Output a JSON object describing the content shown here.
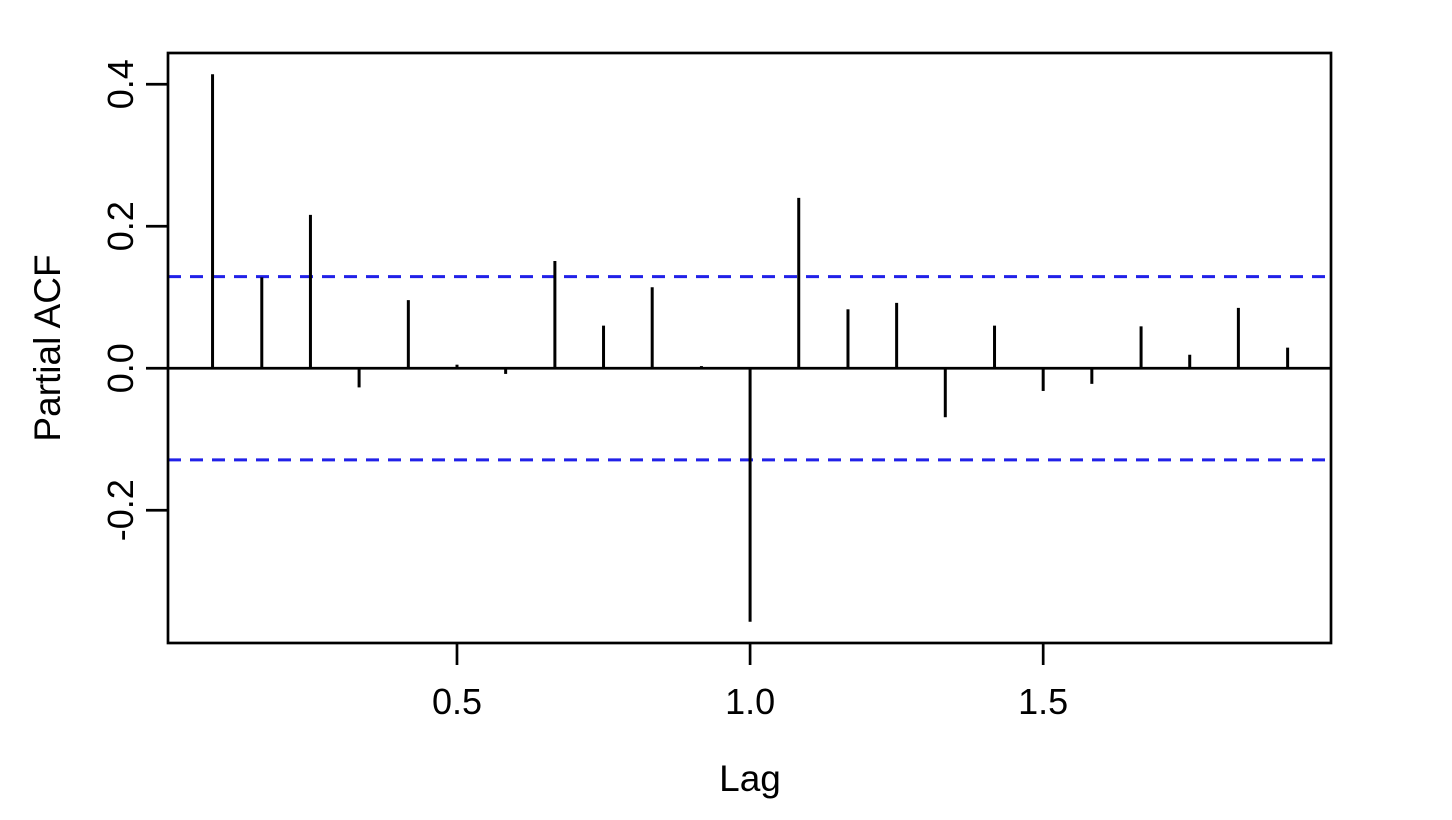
{
  "figure": {
    "background": "#ffffff"
  },
  "chart_data": {
    "type": "bar",
    "subtype": "pacf-stem-plot",
    "title": "",
    "xlabel": "Lag",
    "ylabel": "Partial ACF",
    "x": [
      0.083,
      0.167,
      0.25,
      0.333,
      0.417,
      0.5,
      0.583,
      0.667,
      0.75,
      0.833,
      0.917,
      1.0,
      1.083,
      1.167,
      1.25,
      1.333,
      1.417,
      1.5,
      1.583,
      1.667,
      1.75,
      1.833,
      1.917
    ],
    "values": [
      0.414,
      0.128,
      0.216,
      -0.027,
      0.096,
      0.005,
      -0.008,
      0.151,
      0.06,
      0.114,
      0.003,
      -0.357,
      0.24,
      0.083,
      0.092,
      -0.069,
      0.06,
      -0.032,
      -0.022,
      0.059,
      0.019,
      0.085,
      0.029
    ],
    "confidence_bounds": {
      "upper": 0.129,
      "lower": -0.129,
      "line_style": "dashed",
      "color": "#2121E8"
    },
    "x_ticks": [
      {
        "value": 0.5,
        "label": "0.5"
      },
      {
        "value": 1.0,
        "label": "1.0"
      },
      {
        "value": 1.5,
        "label": "1.5"
      }
    ],
    "y_ticks": [
      {
        "value": -0.2,
        "label": "-0.2"
      },
      {
        "value": 0.0,
        "label": "0.0"
      },
      {
        "value": 0.2,
        "label": "0.2"
      },
      {
        "value": 0.4,
        "label": "0.4"
      }
    ],
    "xlim": [
      0.007,
      1.991
    ],
    "ylim": [
      -0.387,
      0.444
    ],
    "grid": false,
    "legend": "none",
    "colors": {
      "spike": "#000000",
      "frame": "#000000",
      "zero_line": "#000000",
      "text": "#000000"
    }
  }
}
